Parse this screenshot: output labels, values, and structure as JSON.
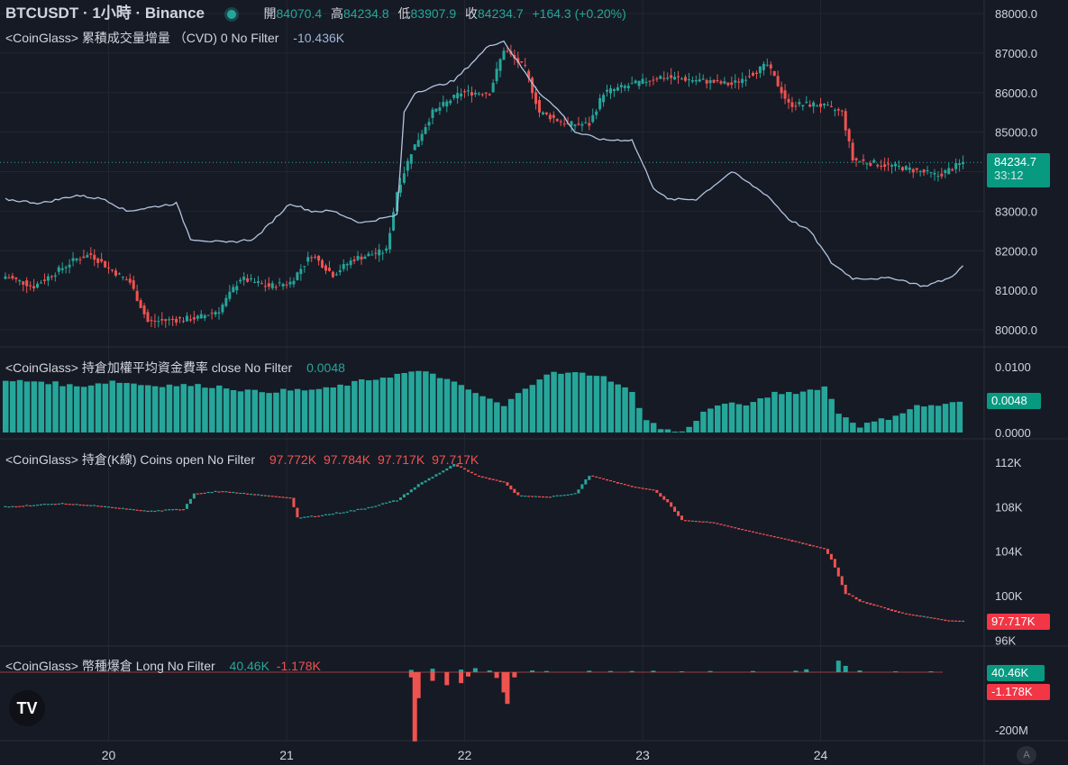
{
  "header": {
    "symbol": "BTCUSDT · 1小時 · Binance",
    "open_label": "開",
    "open": "84070.4",
    "high_label": "高",
    "high": "84234.8",
    "low_label": "低",
    "low": "83907.9",
    "close_label": "收",
    "close": "84234.7",
    "change": "+164.3 (+0.20%)"
  },
  "colors": {
    "up": "#26a69a",
    "down": "#ef5350",
    "cvd": "#b2c5e0",
    "bg": "#161a25"
  },
  "price_tag": {
    "price": "84234.7",
    "countdown": "33:12"
  },
  "funding_tag": "0.0048",
  "oi_tag": "97.717K",
  "liq_tags": {
    "long": "40.46K",
    "short": "-1.178K"
  },
  "legends": {
    "cvd": {
      "name": "<CoinGlass> 累積成交量增量 （CVD) 0 No Filter",
      "value": "-10.436K"
    },
    "funding": {
      "name": "<CoinGlass> 持倉加權平均資金費率 close No Filter",
      "value": "0.0048"
    },
    "oi": {
      "name": "<CoinGlass> 持倉(K線) Coins open No Filter",
      "values": [
        "97.772K",
        "97.784K",
        "97.717K",
        "97.717K"
      ]
    },
    "liq": {
      "name": "<CoinGlass> 幣種爆倉 Long No Filter",
      "value1": "40.46K",
      "value2": "-1.178K"
    }
  },
  "chart_data": [
    {
      "type": "candlestick",
      "title": "BTCUSDT 1h",
      "x_ticks": [
        "20",
        "21",
        "22",
        "23",
        "24"
      ],
      "y_ticks": [
        "80000.0",
        "81000.0",
        "82000.0",
        "83000.0",
        "84000.0",
        "85000.0",
        "86000.0",
        "87000.0",
        "88000.0"
      ],
      "ylim": [
        79700,
        88200
      ],
      "anchors": [
        [
          0,
          81350
        ],
        [
          8,
          81100
        ],
        [
          20,
          81800
        ],
        [
          24,
          81900
        ],
        [
          30,
          81500
        ],
        [
          35,
          81200
        ],
        [
          40,
          80200
        ],
        [
          54,
          80300
        ],
        [
          60,
          80500
        ],
        [
          66,
          81300
        ],
        [
          74,
          81100
        ],
        [
          80,
          81200
        ],
        [
          86,
          81900
        ],
        [
          92,
          81400
        ],
        [
          98,
          81800
        ],
        [
          107,
          82000
        ],
        [
          110,
          83500
        ],
        [
          114,
          84500
        ],
        [
          120,
          85500
        ],
        [
          128,
          86000
        ],
        [
          136,
          86000
        ],
        [
          140,
          87100
        ],
        [
          146,
          86600
        ],
        [
          150,
          85500
        ],
        [
          158,
          85200
        ],
        [
          164,
          85200
        ],
        [
          168,
          86000
        ],
        [
          176,
          86200
        ],
        [
          184,
          86400
        ],
        [
          196,
          86300
        ],
        [
          204,
          86200
        ],
        [
          214,
          86700
        ],
        [
          220,
          85700
        ],
        [
          228,
          85700
        ],
        [
          235,
          85500
        ],
        [
          238,
          84300
        ],
        [
          245,
          84200
        ],
        [
          252,
          84100
        ],
        [
          262,
          83900
        ],
        [
          269,
          84234.7
        ]
      ]
    },
    {
      "type": "line",
      "name": "CVD",
      "anchors": [
        [
          0,
          83300
        ],
        [
          10,
          83200
        ],
        [
          20,
          83400
        ],
        [
          28,
          83300
        ],
        [
          34,
          83000
        ],
        [
          48,
          83200
        ],
        [
          52,
          82300
        ],
        [
          62,
          82200
        ],
        [
          70,
          82300
        ],
        [
          80,
          83200
        ],
        [
          86,
          83000
        ],
        [
          92,
          83000
        ],
        [
          100,
          82700
        ],
        [
          110,
          82900
        ],
        [
          112,
          85500
        ],
        [
          115,
          86000
        ],
        [
          126,
          86300
        ],
        [
          136,
          87200
        ],
        [
          140,
          87300
        ],
        [
          146,
          86500
        ],
        [
          150,
          86000
        ],
        [
          156,
          85500
        ],
        [
          160,
          85000
        ],
        [
          168,
          84800
        ],
        [
          176,
          84800
        ],
        [
          182,
          83600
        ],
        [
          186,
          83300
        ],
        [
          194,
          83300
        ],
        [
          204,
          84000
        ],
        [
          214,
          83400
        ],
        [
          220,
          82800
        ],
        [
          226,
          82500
        ],
        [
          232,
          81700
        ],
        [
          238,
          81300
        ],
        [
          250,
          81300
        ],
        [
          258,
          81100
        ],
        [
          265,
          81300
        ],
        [
          269,
          81600
        ]
      ]
    },
    {
      "type": "bar",
      "name": "Funding rate",
      "y_ticks": [
        "0.0000",
        "0.0100"
      ],
      "ylim": [
        0,
        0.011
      ],
      "anchors": [
        [
          0,
          0.0078
        ],
        [
          10,
          0.0078
        ],
        [
          20,
          0.007
        ],
        [
          30,
          0.0078
        ],
        [
          40,
          0.0072
        ],
        [
          50,
          0.0072
        ],
        [
          60,
          0.007
        ],
        [
          70,
          0.0062
        ],
        [
          80,
          0.0064
        ],
        [
          90,
          0.0066
        ],
        [
          100,
          0.0078
        ],
        [
          110,
          0.0088
        ],
        [
          114,
          0.0092
        ],
        [
          120,
          0.009
        ],
        [
          128,
          0.007
        ],
        [
          136,
          0.005
        ],
        [
          140,
          0.004
        ],
        [
          146,
          0.0068
        ],
        [
          152,
          0.009
        ],
        [
          160,
          0.009
        ],
        [
          166,
          0.0088
        ],
        [
          170,
          0.008
        ],
        [
          176,
          0.006
        ],
        [
          180,
          0.002
        ],
        [
          184,
          0.0006
        ],
        [
          190,
          0.0
        ],
        [
          196,
          0.003
        ],
        [
          200,
          0.0042
        ],
        [
          210,
          0.0044
        ],
        [
          216,
          0.006
        ],
        [
          224,
          0.0062
        ],
        [
          230,
          0.007
        ],
        [
          234,
          0.003
        ],
        [
          240,
          0.001
        ],
        [
          248,
          0.0022
        ],
        [
          256,
          0.004
        ],
        [
          264,
          0.0042
        ],
        [
          269,
          0.0048
        ]
      ]
    },
    {
      "type": "candlestick",
      "name": "Open interest (coins)",
      "y_ticks": [
        "96K",
        "100K",
        "104K",
        "108K",
        "112K"
      ],
      "ylim": [
        95800,
        113300
      ],
      "anchors": [
        [
          0,
          108000
        ],
        [
          15,
          108300
        ],
        [
          25,
          108100
        ],
        [
          40,
          107600
        ],
        [
          50,
          107800
        ],
        [
          53,
          109200
        ],
        [
          60,
          109400
        ],
        [
          80,
          108800
        ],
        [
          82,
          107000
        ],
        [
          90,
          107300
        ],
        [
          100,
          107800
        ],
        [
          110,
          108600
        ],
        [
          116,
          110000
        ],
        [
          126,
          111800
        ],
        [
          132,
          110800
        ],
        [
          140,
          110200
        ],
        [
          144,
          109000
        ],
        [
          152,
          108900
        ],
        [
          160,
          109200
        ],
        [
          164,
          110800
        ],
        [
          176,
          109800
        ],
        [
          182,
          109500
        ],
        [
          186,
          108400
        ],
        [
          190,
          106800
        ],
        [
          198,
          106600
        ],
        [
          210,
          105700
        ],
        [
          220,
          105000
        ],
        [
          230,
          104200
        ],
        [
          232,
          103300
        ],
        [
          236,
          100200
        ],
        [
          240,
          99500
        ],
        [
          252,
          98400
        ],
        [
          260,
          98000
        ],
        [
          264,
          97780
        ],
        [
          269,
          97717
        ]
      ]
    },
    {
      "type": "bar",
      "name": "Liquidations (Long)",
      "y_ticks": [
        "-200M"
      ],
      "events": [
        [
          114,
          -18000000
        ],
        [
          115,
          -240000000
        ],
        [
          116,
          -90000000
        ],
        [
          120,
          -30000000
        ],
        [
          124,
          -45000000
        ],
        [
          128,
          -38000000
        ],
        [
          130,
          -15000000
        ],
        [
          138,
          -20000000
        ],
        [
          140,
          -70000000
        ],
        [
          141,
          -110000000
        ],
        [
          143,
          -18000000
        ],
        [
          114,
          8000000
        ],
        [
          120,
          12000000
        ],
        [
          128,
          9000000
        ],
        [
          132,
          14000000
        ],
        [
          136,
          6000000
        ],
        [
          148,
          6000000
        ],
        [
          152,
          4000000
        ],
        [
          164,
          5000000
        ],
        [
          170,
          4000000
        ],
        [
          176,
          4000000
        ],
        [
          182,
          5000000
        ],
        [
          190,
          3000000
        ],
        [
          198,
          4000000
        ],
        [
          210,
          4000000
        ],
        [
          222,
          5000000
        ],
        [
          225,
          10000000
        ],
        [
          234,
          40000000
        ],
        [
          236,
          22000000
        ],
        [
          240,
          6000000
        ],
        [
          250,
          3000000
        ],
        [
          260,
          3000000
        ]
      ]
    }
  ]
}
